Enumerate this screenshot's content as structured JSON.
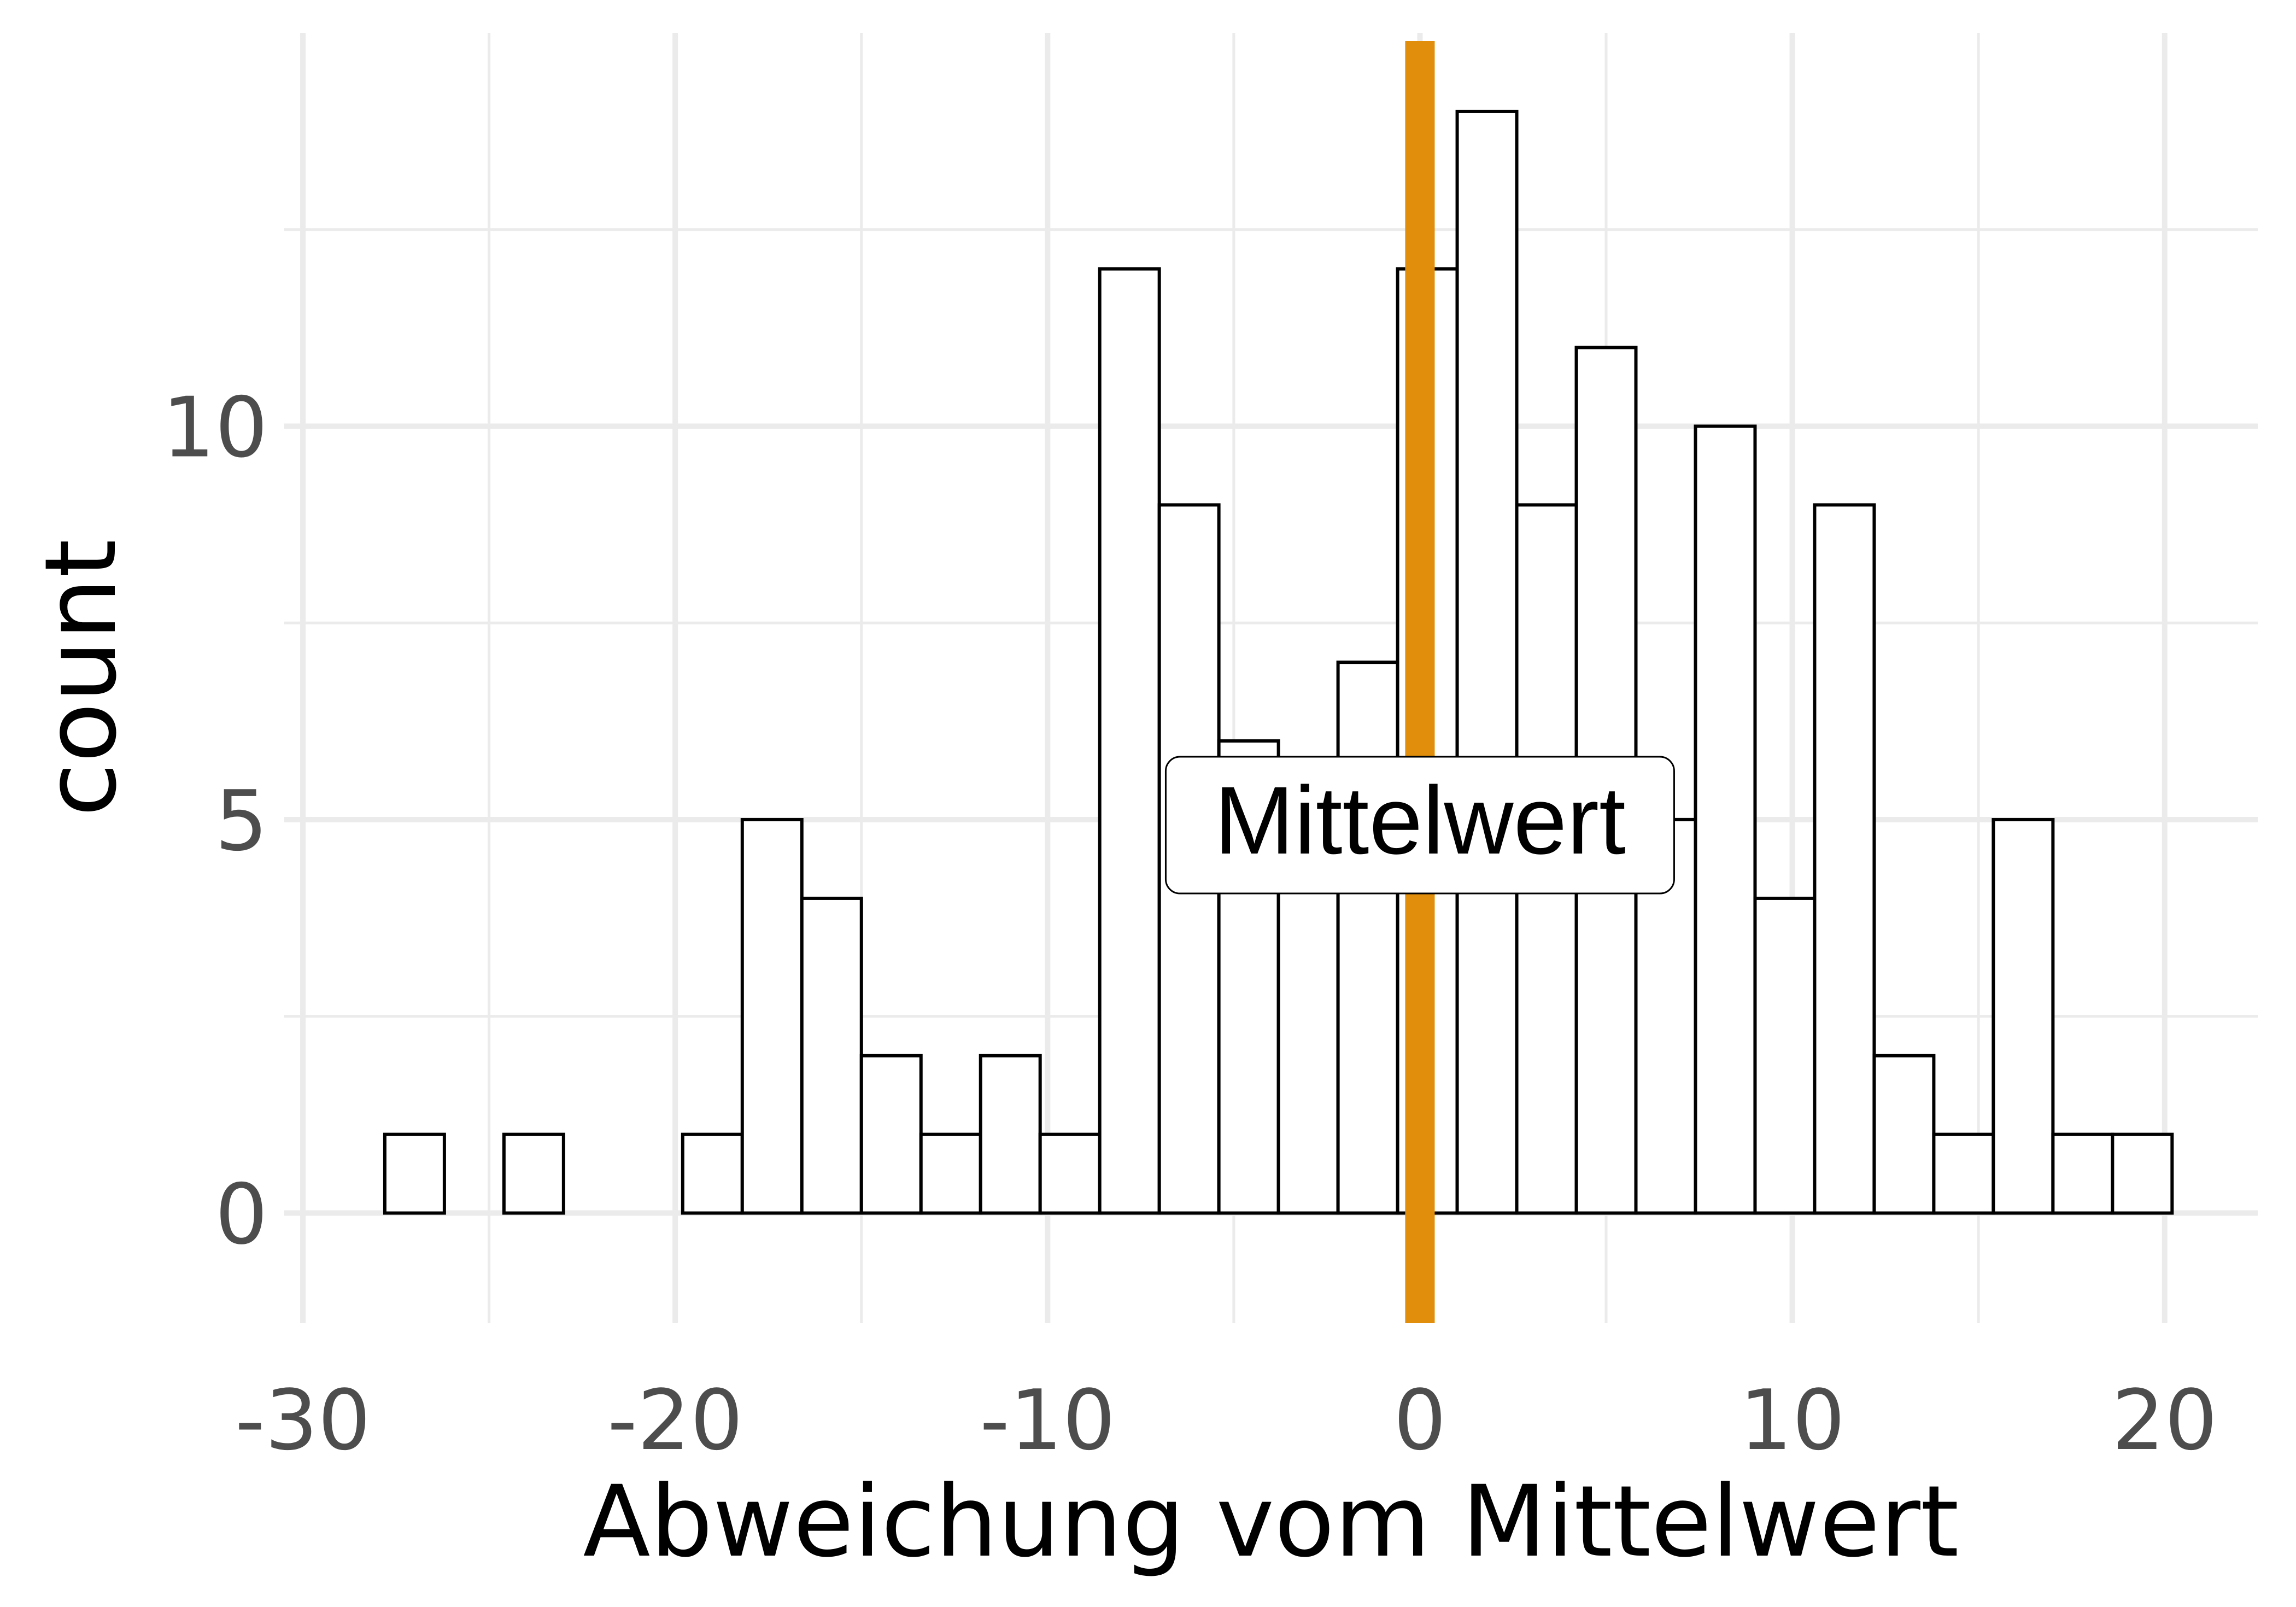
{
  "chart_data": {
    "type": "bar",
    "subtype": "histogram",
    "title": "",
    "xlabel": "Abweichung vom Mittelwert",
    "ylabel": "count",
    "xlim": [
      -30.5,
      22.5
    ],
    "ylim": [
      -1.4,
      15.0
    ],
    "x_ticks": [
      -30,
      -20,
      -10,
      0,
      10,
      20
    ],
    "y_ticks": [
      0,
      5,
      10
    ],
    "x_tick_labels": [
      "-30",
      "-20",
      "-10",
      "0",
      "10",
      "20"
    ],
    "y_tick_labels": [
      "0",
      "5",
      "10"
    ],
    "x_minor_grid": [
      -25,
      -15,
      -5,
      5,
      15
    ],
    "y_minor_grid": [
      2.5,
      7.5,
      12.5
    ],
    "grid": true,
    "bin_width": 1.6,
    "bin_start": -27.8,
    "counts": [
      1,
      0,
      1,
      0,
      0,
      1,
      5,
      4,
      2,
      1,
      2,
      1,
      12,
      9,
      6,
      5,
      7,
      12,
      14,
      9,
      11,
      5,
      10,
      4,
      9,
      2,
      1,
      5,
      1,
      1
    ],
    "bar_fill": "#ffffff",
    "bar_stroke": "#000000",
    "reference_line": {
      "x": 0,
      "color": "#e08e0b",
      "label": "Mittelwert"
    },
    "annotation": {
      "text": "Mittelwert",
      "x": 0,
      "y": 5
    },
    "legend": "none"
  }
}
